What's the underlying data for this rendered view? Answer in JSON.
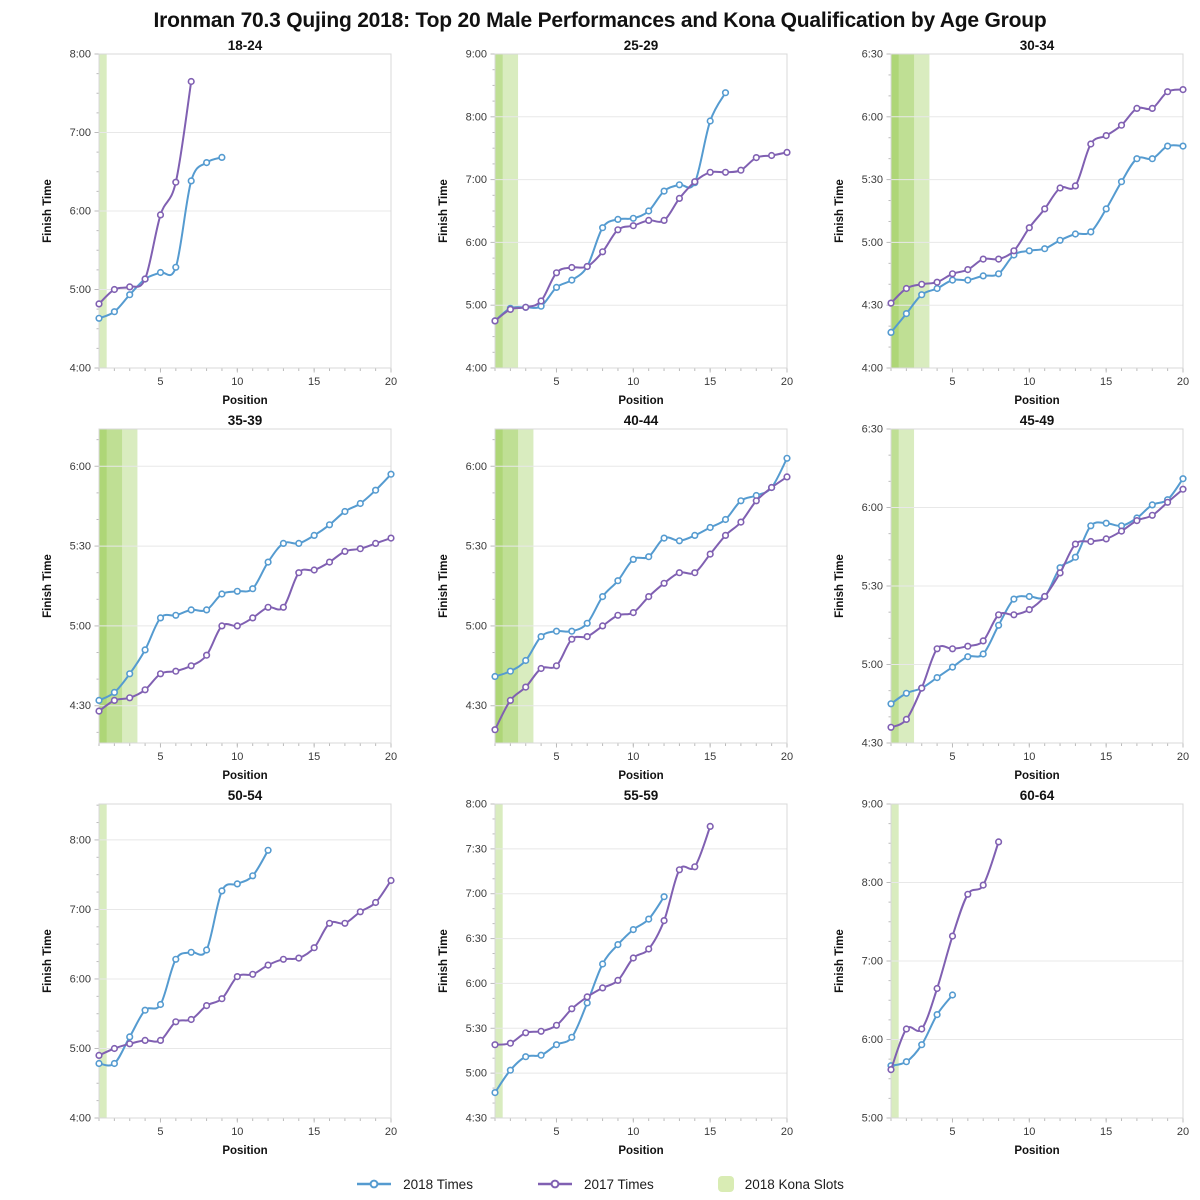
{
  "figure": {
    "title": "Ironman 70.3 Qujing 2018: Top 20 Male Performances and Kona Qualification by Age Group"
  },
  "legend": {
    "items": [
      {
        "label": "2018 Times",
        "type": "line",
        "color": "#559bd0"
      },
      {
        "label": "2017 Times",
        "type": "line",
        "color": "#8060b2"
      },
      {
        "label": "2018 Kona Slots",
        "type": "band",
        "color": "#d9ecb4"
      }
    ]
  },
  "chart_data": [
    {
      "type": "line",
      "title": "18-24",
      "xlabel": "Position",
      "ylabel": "Finish Time",
      "xlim": [
        1,
        20
      ],
      "xticks": [
        5,
        10,
        15,
        20
      ],
      "ylim": [
        "4:00",
        "8:00"
      ],
      "yticks": [
        "4:00",
        "5:00",
        "6:00",
        "7:00",
        "8:00"
      ],
      "grid": "horizontal",
      "kona_slots": 1,
      "series": [
        {
          "name": "2018 Times",
          "color": "#559bd0",
          "times": [
            "4:38",
            "4:43",
            "4:56",
            "5:08",
            "5:13",
            "5:17",
            "6:23",
            "6:37",
            "6:41"
          ]
        },
        {
          "name": "2017 Times",
          "color": "#8060b2",
          "times": [
            "4:49",
            "5:00",
            "5:02",
            "5:08",
            "5:57",
            "6:22",
            "7:39"
          ]
        }
      ]
    },
    {
      "type": "line",
      "title": "25-29",
      "xlabel": "Position",
      "ylabel": "Finish Time",
      "xlim": [
        1,
        20
      ],
      "xticks": [
        5,
        10,
        15,
        20
      ],
      "ylim": [
        "4:00",
        "9:00"
      ],
      "yticks": [
        "4:00",
        "5:00",
        "6:00",
        "7:00",
        "8:00",
        "9:00"
      ],
      "grid": "horizontal",
      "kona_slots": 2,
      "series": [
        {
          "name": "2018 Times",
          "color": "#559bd0",
          "times": [
            "4:45",
            "4:57",
            "4:58",
            "4:59",
            "5:17",
            "5:24",
            "5:37",
            "6:14",
            "6:22",
            "6:23",
            "6:30",
            "6:49",
            "6:55",
            "6:57",
            "7:56",
            "8:23"
          ]
        },
        {
          "name": "2017 Times",
          "color": "#8060b2",
          "times": [
            "4:45",
            "4:56",
            "4:58",
            "5:04",
            "5:31",
            "5:36",
            "5:37",
            "5:51",
            "6:12",
            "6:16",
            "6:21",
            "6:21",
            "6:42",
            "6:58",
            "7:07",
            "7:07",
            "7:09",
            "7:21",
            "7:23",
            "7:26"
          ]
        }
      ]
    },
    {
      "type": "line",
      "title": "30-34",
      "xlabel": "Position",
      "ylabel": "Finish Time",
      "xlim": [
        1,
        20
      ],
      "xticks": [
        5,
        10,
        15,
        20
      ],
      "ylim": [
        "4:00",
        "6:30"
      ],
      "yticks": [
        "4:00",
        "4:30",
        "5:00",
        "5:30",
        "6:00",
        "6:30"
      ],
      "grid": "horizontal",
      "kona_slots": 3,
      "series": [
        {
          "name": "2018 Times",
          "color": "#559bd0",
          "times": [
            "4:17",
            "4:26",
            "4:35",
            "4:38",
            "4:42",
            "4:42",
            "4:44",
            "4:45",
            "4:54",
            "4:56",
            "4:57",
            "5:01",
            "5:04",
            "5:05",
            "5:16",
            "5:29",
            "5:40",
            "5:40",
            "5:46",
            "5:46"
          ]
        },
        {
          "name": "2017 Times",
          "color": "#8060b2",
          "times": [
            "4:31",
            "4:38",
            "4:40",
            "4:41",
            "4:45",
            "4:47",
            "4:52",
            "4:52",
            "4:56",
            "5:07",
            "5:16",
            "5:26",
            "5:27",
            "5:47",
            "5:51",
            "5:56",
            "6:04",
            "6:04",
            "6:12",
            "6:13"
          ]
        }
      ]
    },
    {
      "type": "line",
      "title": "35-39",
      "xlabel": "Position",
      "ylabel": "Finish Time",
      "xlim": [
        1,
        20
      ],
      "xticks": [
        5,
        10,
        15,
        20
      ],
      "ylim": [
        "4:16",
        "6:14"
      ],
      "yticks": [
        "4:30",
        "5:00",
        "5:30",
        "6:00"
      ],
      "grid": "horizontal",
      "kona_slots": 3,
      "series": [
        {
          "name": "2018 Times",
          "color": "#559bd0",
          "times": [
            "4:32",
            "4:35",
            "4:42",
            "4:51",
            "5:03",
            "5:04",
            "5:06",
            "5:06",
            "5:12",
            "5:13",
            "5:14",
            "5:24",
            "5:31",
            "5:31",
            "5:34",
            "5:38",
            "5:43",
            "5:46",
            "5:51",
            "5:57"
          ]
        },
        {
          "name": "2017 Times",
          "color": "#8060b2",
          "times": [
            "4:28",
            "4:32",
            "4:33",
            "4:36",
            "4:42",
            "4:43",
            "4:45",
            "4:49",
            "5:00",
            "5:00",
            "5:03",
            "5:07",
            "5:07",
            "5:20",
            "5:21",
            "5:24",
            "5:28",
            "5:29",
            "5:31",
            "5:33"
          ]
        }
      ]
    },
    {
      "type": "line",
      "title": "40-44",
      "xlabel": "Position",
      "ylabel": "Finish Time",
      "xlim": [
        1,
        20
      ],
      "xticks": [
        5,
        10,
        15,
        20
      ],
      "ylim": [
        "4:16",
        "6:14"
      ],
      "yticks": [
        "4:30",
        "5:00",
        "5:30",
        "6:00"
      ],
      "grid": "horizontal",
      "kona_slots": 3,
      "series": [
        {
          "name": "2018 Times",
          "color": "#559bd0",
          "times": [
            "4:41",
            "4:43",
            "4:47",
            "4:56",
            "4:58",
            "4:58",
            "5:01",
            "5:11",
            "5:17",
            "5:25",
            "5:26",
            "5:33",
            "5:32",
            "5:34",
            "5:37",
            "5:40",
            "5:47",
            "5:49",
            "5:52",
            "6:03"
          ]
        },
        {
          "name": "2017 Times",
          "color": "#8060b2",
          "times": [
            "4:21",
            "4:32",
            "4:37",
            "4:44",
            "4:45",
            "4:55",
            "4:56",
            "5:00",
            "5:04",
            "5:05",
            "5:11",
            "5:16",
            "5:20",
            "5:20",
            "5:27",
            "5:34",
            "5:39",
            "5:47",
            "5:52",
            "5:56"
          ]
        }
      ]
    },
    {
      "type": "line",
      "title": "45-49",
      "xlabel": "Position",
      "ylabel": "Finish Time",
      "xlim": [
        1,
        20
      ],
      "xticks": [
        5,
        10,
        15,
        20
      ],
      "ylim": [
        "4:30",
        "6:30"
      ],
      "yticks": [
        "4:30",
        "5:00",
        "5:30",
        "6:00",
        "6:30"
      ],
      "grid": "horizontal",
      "kona_slots": 2,
      "series": [
        {
          "name": "2018 Times",
          "color": "#559bd0",
          "times": [
            "4:45",
            "4:49",
            "4:51",
            "4:55",
            "4:59",
            "5:03",
            "5:04",
            "5:15",
            "5:25",
            "5:26",
            "5:26",
            "5:37",
            "5:41",
            "5:53",
            "5:54",
            "5:53",
            "5:56",
            "6:01",
            "6:03",
            "6:11"
          ]
        },
        {
          "name": "2017 Times",
          "color": "#8060b2",
          "times": [
            "4:36",
            "4:39",
            "4:51",
            "5:06",
            "5:06",
            "5:07",
            "5:09",
            "5:19",
            "5:19",
            "5:21",
            "5:26",
            "5:35",
            "5:46",
            "5:47",
            "5:48",
            "5:51",
            "5:55",
            "5:57",
            "6:02",
            "6:07"
          ]
        }
      ]
    },
    {
      "type": "line",
      "title": "50-54",
      "xlabel": "Position",
      "ylabel": "Finish Time",
      "xlim": [
        1,
        20
      ],
      "xticks": [
        5,
        10,
        15,
        20
      ],
      "ylim": [
        "4:00",
        "8:31"
      ],
      "yticks": [
        "4:00",
        "5:00",
        "6:00",
        "7:00",
        "8:00"
      ],
      "grid": "horizontal",
      "kona_slots": 1,
      "series": [
        {
          "name": "2018 Times",
          "color": "#559bd0",
          "times": [
            "4:47",
            "4:47",
            "5:10",
            "5:33",
            "5:38",
            "6:17",
            "6:23",
            "6:25",
            "7:16",
            "7:22",
            "7:29",
            "7:51"
          ]
        },
        {
          "name": "2017 Times",
          "color": "#8060b2",
          "times": [
            "4:54",
            "5:00",
            "5:04",
            "5:07",
            "5:07",
            "5:23",
            "5:25",
            "5:37",
            "5:43",
            "6:02",
            "6:04",
            "6:12",
            "6:17",
            "6:18",
            "6:27",
            "6:48",
            "6:48",
            "6:58",
            "7:06",
            "7:25"
          ]
        }
      ]
    },
    {
      "type": "line",
      "title": "55-59",
      "xlabel": "Position",
      "ylabel": "Finish Time",
      "xlim": [
        1,
        20
      ],
      "xticks": [
        5,
        10,
        15,
        20
      ],
      "ylim": [
        "4:30",
        "8:00"
      ],
      "yticks": [
        "4:30",
        "5:00",
        "5:30",
        "6:00",
        "6:30",
        "7:00",
        "7:30",
        "8:00"
      ],
      "grid": "horizontal",
      "kona_slots": 1,
      "series": [
        {
          "name": "2018 Times",
          "color": "#559bd0",
          "times": [
            "4:47",
            "5:02",
            "5:11",
            "5:12",
            "5:19",
            "5:24",
            "5:47",
            "6:13",
            "6:26",
            "6:36",
            "6:43",
            "6:58"
          ]
        },
        {
          "name": "2017 Times",
          "color": "#8060b2",
          "times": [
            "5:19",
            "5:20",
            "5:27",
            "5:28",
            "5:32",
            "5:43",
            "5:51",
            "5:57",
            "6:02",
            "6:17",
            "6:23",
            "6:42",
            "7:16",
            "7:18",
            "7:45"
          ]
        }
      ]
    },
    {
      "type": "line",
      "title": "60-64",
      "xlabel": "Position",
      "ylabel": "Finish Time",
      "xlim": [
        1,
        20
      ],
      "xticks": [
        5,
        10,
        15,
        20
      ],
      "ylim": [
        "5:00",
        "9:00"
      ],
      "yticks": [
        "5:00",
        "6:00",
        "7:00",
        "8:00",
        "9:00"
      ],
      "grid": "horizontal",
      "kona_slots": 1,
      "series": [
        {
          "name": "2018 Times",
          "color": "#559bd0",
          "times": [
            "5:40",
            "5:43",
            "5:56",
            "6:19",
            "6:34"
          ]
        },
        {
          "name": "2017 Times",
          "color": "#8060b2",
          "times": [
            "5:37",
            "6:08",
            "6:08",
            "6:39",
            "7:19",
            "7:51",
            "7:58",
            "8:31"
          ]
        }
      ]
    }
  ],
  "style_colors": {
    "kona_band_base": "#8cc63e",
    "gridline": "#e8e8e8",
    "plot_border": "#d8d8d8",
    "tick": "#bbbbbb",
    "tick_label": "#3a3a3a",
    "text": "#111111"
  }
}
